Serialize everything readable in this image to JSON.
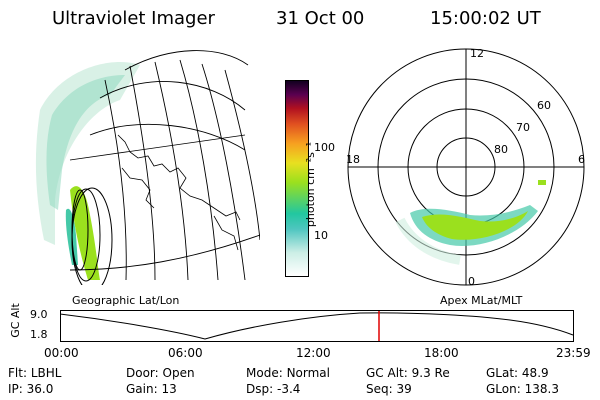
{
  "header": {
    "instrument": "Ultraviolet Imager",
    "date": "31 Oct 00",
    "time": "15:00:02 UT"
  },
  "colorbar": {
    "label": "photon cm⁻²s⁻¹",
    "ticks": [
      "100",
      "10"
    ],
    "scale": "log"
  },
  "geo_panel": {
    "label": "Geographic Lat/Lon"
  },
  "polar_panel": {
    "label": "Apex  MLat/MLT",
    "mlt_labels": [
      "12",
      "18",
      "6",
      "0"
    ],
    "mlat_labels": [
      "60",
      "70",
      "80"
    ]
  },
  "altitude_strip": {
    "ylabel": "GC Alt",
    "y_ticks": [
      "9.0",
      "1.8"
    ],
    "x_ticks": [
      "00:00",
      "06:00",
      "12:00",
      "18:00",
      "23:59"
    ],
    "current_time_marker": "15:00:02"
  },
  "info": [
    {
      "label": "Flt:",
      "value": "LBHL"
    },
    {
      "label": "Door:",
      "value": "Open"
    },
    {
      "label": "Mode:",
      "value": "Normal"
    },
    {
      "label": "GC Alt:",
      "value": "9.3 Re"
    },
    {
      "label": "GLat:",
      "value": "48.9"
    },
    {
      "label": "IP:",
      "value": "36.0"
    },
    {
      "label": "Gain:",
      "value": "13"
    },
    {
      "label": "Dsp:",
      "value": "-3.4"
    },
    {
      "label": "Seq:",
      "value": "39"
    },
    {
      "label": "GLon:",
      "value": "138.3"
    }
  ],
  "colors": {
    "aurora_low": "#bfe6d8",
    "aurora_mid": "#45c9a8",
    "aurora_high": "#9be01e",
    "marker": "#e00000"
  }
}
